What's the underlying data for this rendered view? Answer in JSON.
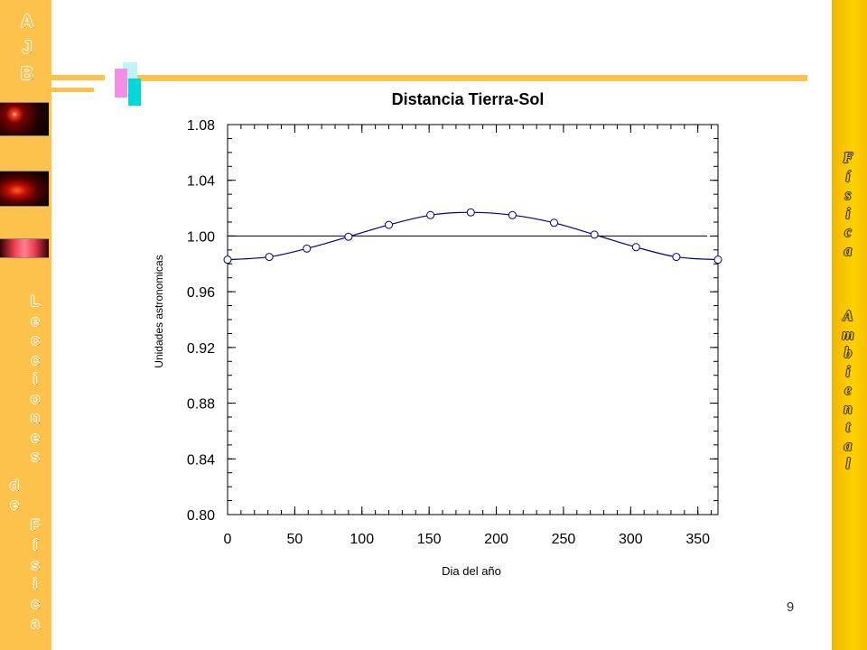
{
  "sidebar_left": {
    "logo_letters": [
      "A",
      "J",
      "B"
    ],
    "title_letters": [
      "L",
      "e",
      "c",
      "c",
      "i",
      "o",
      "n",
      "e",
      "s"
    ],
    "de_letters": [
      "d",
      "e"
    ],
    "subject_letters": [
      "F",
      "í",
      "s",
      "i",
      "c",
      "a"
    ]
  },
  "sidebar_right": {
    "word1_letters": [
      "F",
      "í",
      "s",
      "i",
      "c",
      "a"
    ],
    "word2_letters": [
      "A",
      "m",
      "b",
      "i",
      "e",
      "n",
      "t",
      "a",
      "l"
    ]
  },
  "colors": {
    "sidebar_left": "#fcc24c",
    "sidebar_right": "#f5c400",
    "series": "#00008b",
    "reference_line": "#000000"
  },
  "page_number": "9",
  "chart_data": {
    "type": "line",
    "title": "Distancia Tierra-Sol",
    "xlabel": "Dia del año",
    "ylabel": "Unidades astronomicas",
    "xlim": [
      0,
      365
    ],
    "ylim": [
      0.8,
      1.08
    ],
    "x_ticks": [
      "0",
      "50",
      "100",
      "150",
      "200",
      "250",
      "300",
      "350"
    ],
    "y_ticks": [
      "1.08",
      "1.04",
      "1.00",
      "0.96",
      "0.92",
      "0.88",
      "0.84",
      "0.80"
    ],
    "reference_line_y": 1.0,
    "grid": false,
    "series": [
      {
        "x": [
          0,
          31,
          59,
          90,
          120,
          151,
          181,
          212,
          243,
          273,
          304,
          334,
          365
        ],
        "y": [
          0.983,
          0.985,
          0.991,
          0.9995,
          1.008,
          1.015,
          1.017,
          1.015,
          1.0095,
          1.001,
          0.992,
          0.985,
          0.983
        ]
      }
    ]
  }
}
